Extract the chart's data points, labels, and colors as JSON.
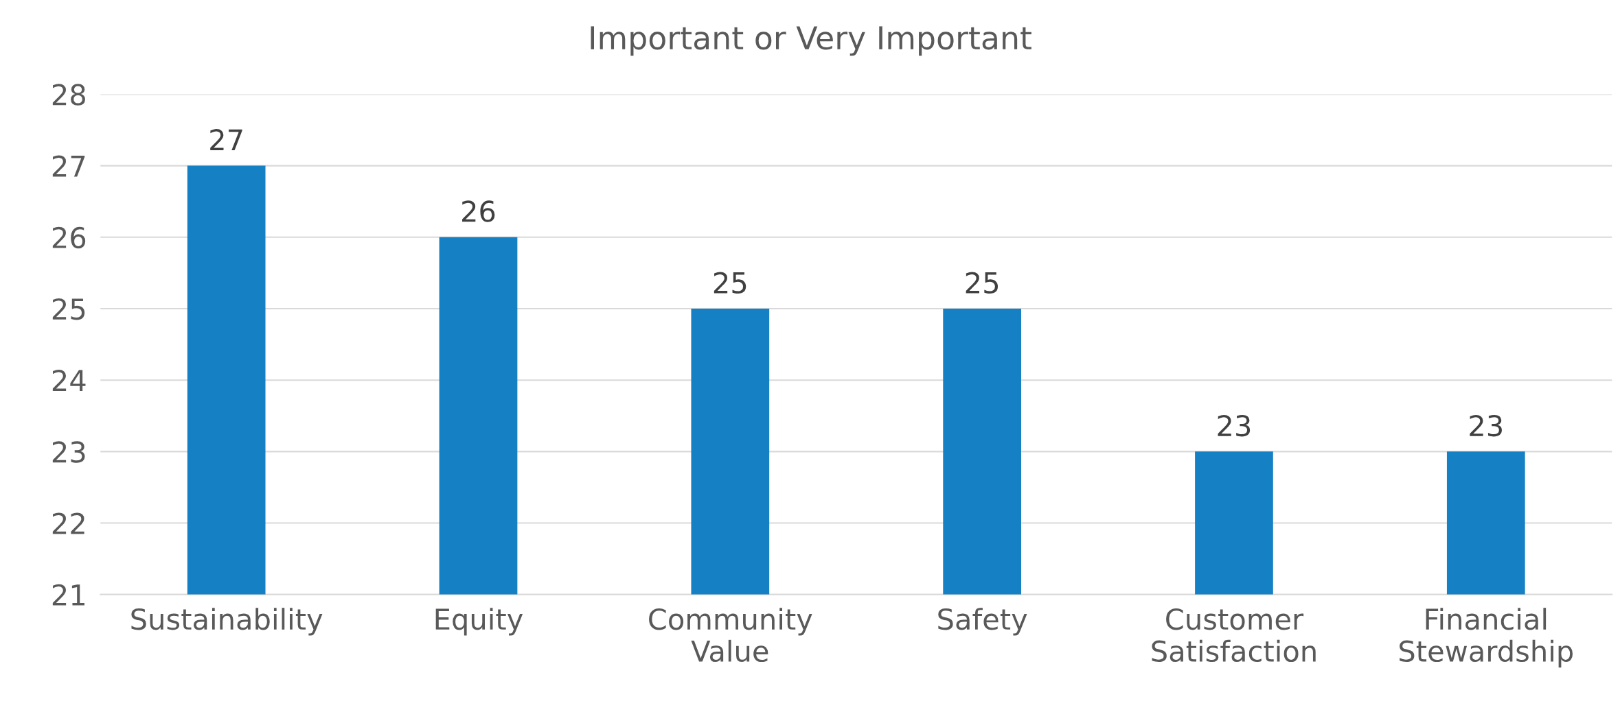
{
  "chart_data": {
    "type": "bar",
    "title": "Important or Very Important",
    "categories": [
      "Sustainability",
      "Equity",
      "Community Value",
      "Safety",
      "Customer Satisfaction",
      "Financial Stewardship"
    ],
    "values": [
      27,
      26,
      25,
      25,
      23,
      23
    ],
    "color": "#1580c4",
    "ylim": [
      21,
      28
    ],
    "yticks": [
      21,
      22,
      23,
      24,
      25,
      26,
      27,
      28
    ],
    "grid": "y",
    "data_labels": true,
    "legend": false
  }
}
